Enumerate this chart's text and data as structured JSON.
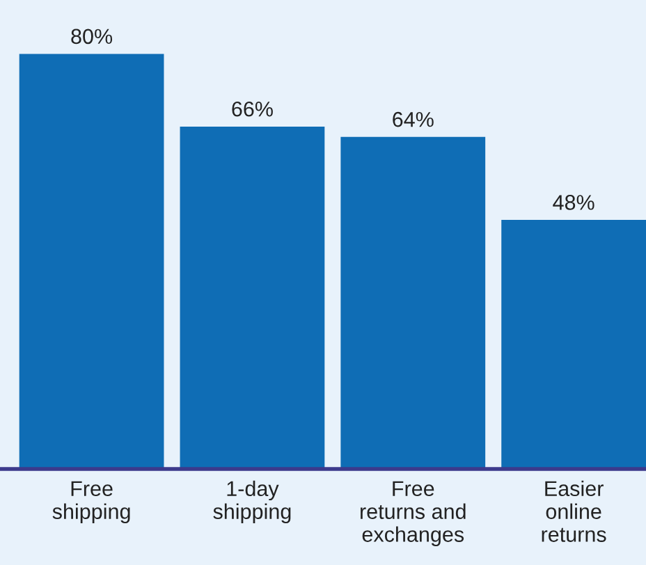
{
  "chart_data": {
    "type": "bar",
    "categories": [
      "Free\nshipping",
      "1-day\nshipping",
      "Free\nreturns and\nexchanges",
      "Easier\nonline\nreturns"
    ],
    "values": [
      80,
      66,
      64,
      48
    ],
    "value_labels": [
      "80%",
      "66%",
      "64%",
      "48%"
    ],
    "color": "#0f6db5",
    "grid": false
  }
}
